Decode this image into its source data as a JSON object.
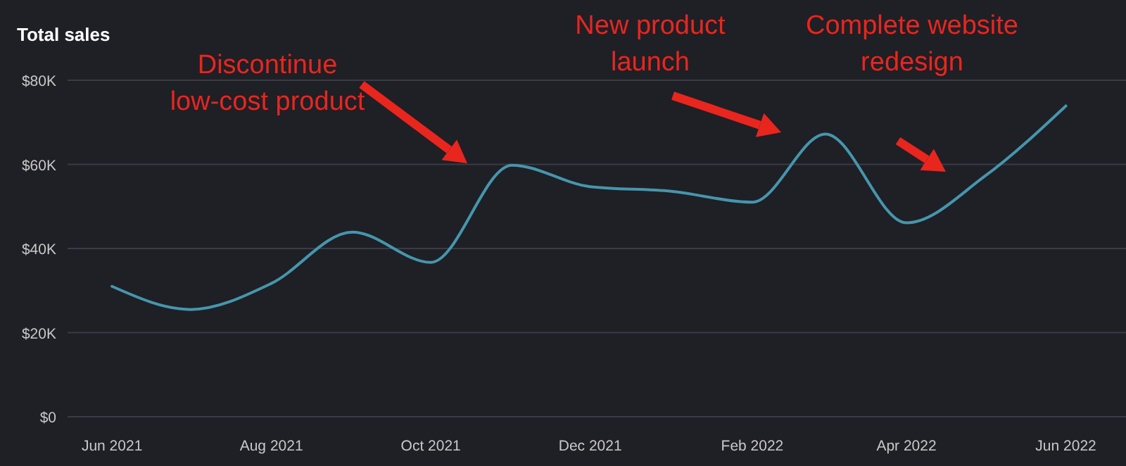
{
  "chart_data": {
    "type": "line",
    "title": "Total sales",
    "x": [
      "2021-06",
      "2021-07",
      "2021-08",
      "2021-09",
      "2021-10",
      "2021-11",
      "2021-12",
      "2022-01",
      "2022-02",
      "2022-03",
      "2022-04",
      "2022-05",
      "2022-06"
    ],
    "series": [
      {
        "color": "#4596ac",
        "values": [
          31000,
          25500,
          31700,
          43900,
          36700,
          59800,
          54700,
          53600,
          51000,
          67200,
          46100,
          57200,
          73900
        ]
      }
    ],
    "xlim": [
      "2021-05-15",
      "2022-06-24"
    ],
    "xticks": [
      {
        "value": "2021-06",
        "label": "Jun 2021"
      },
      {
        "value": "2021-08",
        "label": "Aug 2021"
      },
      {
        "value": "2021-10",
        "label": "Oct 2021"
      },
      {
        "value": "2021-12",
        "label": "Dec 2021"
      },
      {
        "value": "2022-02",
        "label": "Feb 2022"
      },
      {
        "value": "2022-04",
        "label": "Apr 2022"
      },
      {
        "value": "2022-06",
        "label": "Jun 2022"
      }
    ],
    "ylim": [
      0,
      80000
    ],
    "yticks": [
      {
        "value": 0,
        "label": "$0"
      },
      {
        "value": 20000,
        "label": "$20K"
      },
      {
        "value": 40000,
        "label": "$40K"
      },
      {
        "value": 60000,
        "label": "$60K"
      },
      {
        "value": 80000,
        "label": "$80K"
      }
    ],
    "grid": "y",
    "marker": "none",
    "line_style": "solid",
    "annotations": [
      "Discontinue low-cost product",
      "New product launch",
      "Complete website redesign"
    ]
  }
}
